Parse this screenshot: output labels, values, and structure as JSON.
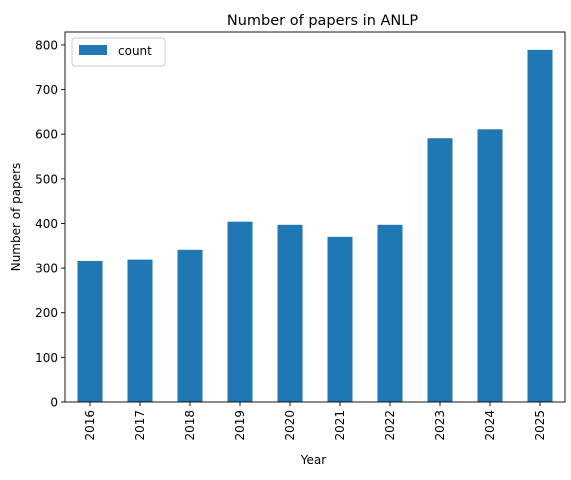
{
  "chart_data": {
    "type": "bar",
    "title": "Number of papers in ANLP",
    "xlabel": "Year",
    "ylabel": "Number of papers",
    "categories": [
      "2016",
      "2017",
      "2018",
      "2019",
      "2020",
      "2021",
      "2022",
      "2023",
      "2024",
      "2025"
    ],
    "series": [
      {
        "name": "count",
        "values": [
          316,
          319,
          341,
          404,
          397,
          370,
          397,
          591,
          611,
          789
        ],
        "color": "#1f77b4"
      }
    ],
    "ylim": [
      0,
      829
    ],
    "yticks": [
      0,
      100,
      200,
      300,
      400,
      500,
      600,
      700,
      800
    ],
    "legend": "top-left",
    "grid": false
  }
}
